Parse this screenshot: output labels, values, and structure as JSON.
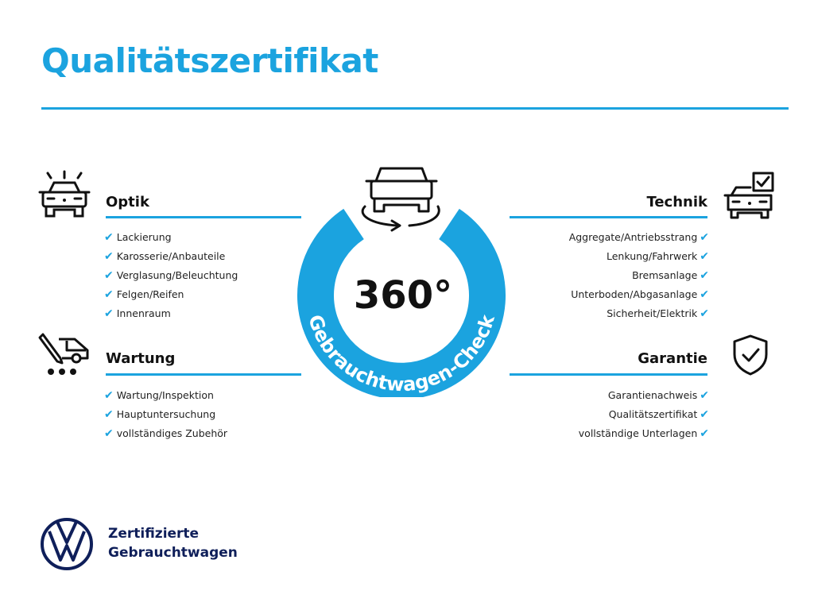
{
  "title": "Qualitätszertifikat",
  "accent_color": "#1ba3df",
  "brand_color": "#0f1f5a",
  "center": {
    "value": "360°",
    "ring_text": "Gebrauchtwagen-Check",
    "icon": "car-rotate-icon"
  },
  "sections": {
    "optik": {
      "title": "Optik",
      "icon": "car-lights-icon",
      "items": [
        "Lackierung",
        "Karosserie/Anbauteile",
        "Verglasung/Beleuchtung",
        "Felgen/Reifen",
        "Innenraum"
      ]
    },
    "wartung": {
      "title": "Wartung",
      "icon": "car-service-icon",
      "items": [
        "Wartung/Inspektion",
        "Hauptuntersuchung",
        "vollständiges Zubehör"
      ]
    },
    "technik": {
      "title": "Technik",
      "icon": "car-checkbox-icon",
      "items": [
        "Aggregate/Antriebsstrang",
        "Lenkung/Fahrwerk",
        "Bremsanlage",
        "Unterboden/Abgasanlage",
        "Sicherheit/Elektrik"
      ]
    },
    "garantie": {
      "title": "Garantie",
      "icon": "shield-check-icon",
      "items": [
        "Garantienachweis",
        "Qualitätszertifikat",
        "vollständige Unterlagen"
      ]
    }
  },
  "check_mark": "✔",
  "footer": {
    "logo": "VW",
    "line1": "Zertifizierte",
    "line2": "Gebrauchtwagen"
  }
}
